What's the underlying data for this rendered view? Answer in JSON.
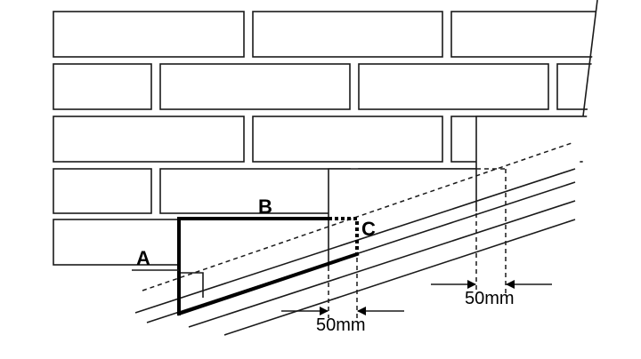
{
  "labels": {
    "a": "A",
    "b": "B",
    "c": "C"
  },
  "dimensions": {
    "lower": "50mm",
    "upper": "50mm"
  }
}
